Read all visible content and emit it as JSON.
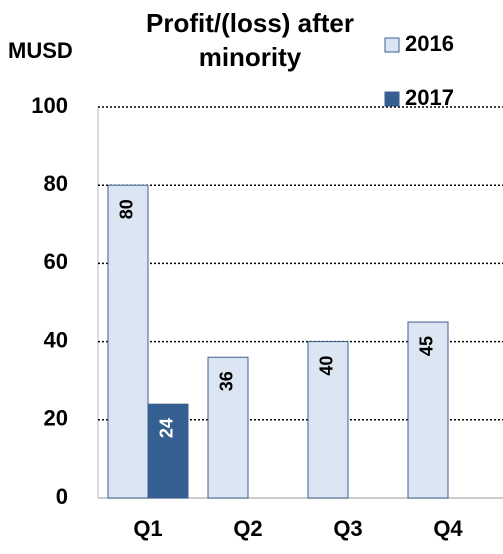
{
  "chart_data": {
    "type": "bar",
    "title": "Profit/(loss) after minority",
    "y_label": "MUSD",
    "categories": [
      "Q1",
      "Q2",
      "Q3",
      "Q4"
    ],
    "series": [
      {
        "name": "2016",
        "color": "#dce6f2",
        "values": [
          80,
          36,
          40,
          45
        ]
      },
      {
        "name": "2017",
        "color": "#365f91",
        "values": [
          24,
          null,
          null,
          null
        ]
      }
    ],
    "ylim": [
      0,
      100
    ],
    "yticks": [
      0,
      20,
      40,
      60,
      80,
      100
    ],
    "grid": true,
    "legend": "top-right"
  }
}
